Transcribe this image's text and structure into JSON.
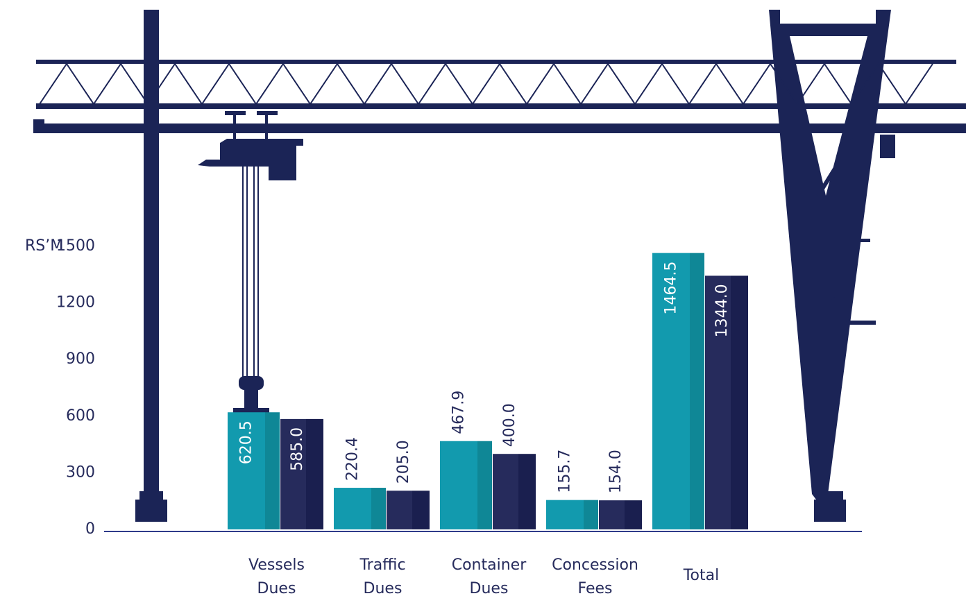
{
  "chart_data": {
    "type": "bar",
    "y_label": "RS’M",
    "categories": [
      "Vessels Dues",
      "Traffic Dues",
      "Container Dues",
      "Concession Fees",
      "Total"
    ],
    "series": [
      {
        "color": "#129aae",
        "values": [
          620.5,
          220.4,
          467.9,
          155.7,
          1464.5
        ],
        "value_labels": [
          "620.5",
          "220.4",
          "467.9",
          "155.7",
          "1464.5"
        ]
      },
      {
        "color": "#262b5c",
        "values": [
          585,
          205,
          400,
          154,
          1344
        ],
        "value_labels": [
          "585.0",
          "205.0",
          "400.0",
          "154.0",
          "1344.0"
        ]
      }
    ],
    "ylim": [
      0,
      1500
    ],
    "yticks": [
      0,
      300,
      600,
      900,
      1200,
      1500
    ],
    "grid": false
  }
}
